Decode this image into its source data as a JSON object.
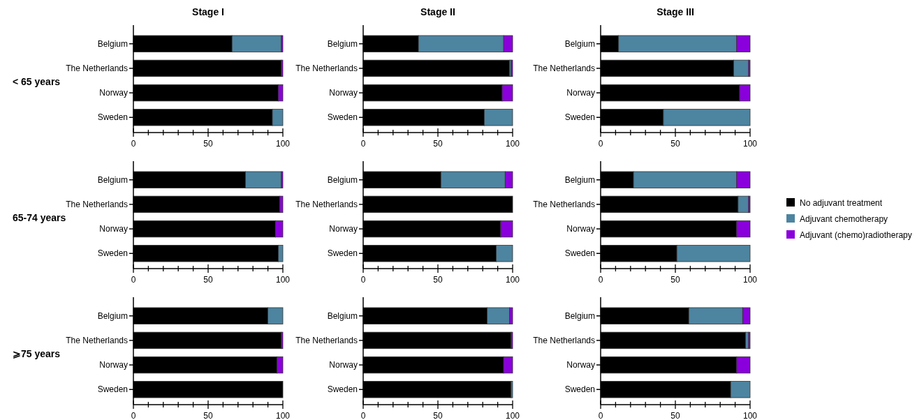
{
  "chart_data": [
    {
      "type": "bar",
      "orientation": "horizontal",
      "stacked": true,
      "title": "Stage I",
      "ylabel": "< 65 years",
      "categories": [
        "Belgium",
        "The Netherlands",
        "Norway",
        "Sweden"
      ],
      "xlim": [
        0,
        100
      ],
      "xticks": [
        0,
        {
          "value": 10,
          "label": null
        },
        {
          "value": 20,
          "label": null
        },
        {
          "value": 30,
          "label": null
        },
        {
          "value": 40,
          "label": null
        },
        50,
        {
          "value": 60,
          "label": null
        },
        {
          "value": 70,
          "label": null
        },
        {
          "value": 80,
          "label": null
        },
        {
          "value": 90,
          "label": null
        },
        100
      ],
      "series": [
        {
          "color": "#000000",
          "values": [
            66,
            99,
            97,
            93
          ]
        },
        {
          "color": "#4d84a0",
          "values": [
            33,
            0,
            0,
            7
          ]
        },
        {
          "color": "#8a00dc",
          "values": [
            1,
            1,
            3,
            0
          ]
        }
      ]
    },
    {
      "type": "bar",
      "orientation": "horizontal",
      "stacked": true,
      "title": "Stage II",
      "categories": [
        "Belgium",
        "The Netherlands",
        "Norway",
        "Sweden"
      ],
      "xlim": [
        0,
        100
      ],
      "xticks": [
        0,
        {
          "value": 10,
          "label": null
        },
        {
          "value": 20,
          "label": null
        },
        {
          "value": 30,
          "label": null
        },
        {
          "value": 40,
          "label": null
        },
        50,
        {
          "value": 60,
          "label": null
        },
        {
          "value": 70,
          "label": null
        },
        {
          "value": 80,
          "label": null
        },
        {
          "value": 90,
          "label": null
        },
        100
      ],
      "series": [
        {
          "color": "#000000",
          "values": [
            37,
            98,
            93,
            81
          ]
        },
        {
          "color": "#4d84a0",
          "values": [
            57,
            1,
            0,
            19
          ]
        },
        {
          "color": "#8a00dc",
          "values": [
            6,
            1,
            7,
            0
          ]
        }
      ]
    },
    {
      "type": "bar",
      "orientation": "horizontal",
      "stacked": true,
      "title": "Stage III",
      "categories": [
        "Belgium",
        "The Netherlands",
        "Norway",
        "Sweden"
      ],
      "xlim": [
        0,
        100
      ],
      "xticks": [
        0,
        {
          "value": 10,
          "label": null
        },
        {
          "value": 20,
          "label": null
        },
        {
          "value": 30,
          "label": null
        },
        {
          "value": 40,
          "label": null
        },
        50,
        {
          "value": 60,
          "label": null
        },
        {
          "value": 70,
          "label": null
        },
        {
          "value": 80,
          "label": null
        },
        {
          "value": 90,
          "label": null
        },
        100
      ],
      "series": [
        {
          "color": "#000000",
          "values": [
            12,
            89,
            93,
            42
          ]
        },
        {
          "color": "#4d84a0",
          "values": [
            79,
            10,
            0,
            58
          ]
        },
        {
          "color": "#8a00dc",
          "values": [
            9,
            1,
            7,
            0
          ]
        }
      ]
    },
    {
      "type": "bar",
      "orientation": "horizontal",
      "stacked": true,
      "ylabel": "65-74 years",
      "categories": [
        "Belgium",
        "The Netherlands",
        "Norway",
        "Sweden"
      ],
      "xlim": [
        0,
        100
      ],
      "xticks": [
        0,
        {
          "value": 10,
          "label": null
        },
        {
          "value": 20,
          "label": null
        },
        {
          "value": 30,
          "label": null
        },
        {
          "value": 40,
          "label": null
        },
        50,
        {
          "value": 60,
          "label": null
        },
        {
          "value": 70,
          "label": null
        },
        {
          "value": 80,
          "label": null
        },
        {
          "value": 90,
          "label": null
        },
        100
      ],
      "series": [
        {
          "color": "#000000",
          "values": [
            75,
            98,
            95,
            97
          ]
        },
        {
          "color": "#4d84a0",
          "values": [
            24,
            0,
            0,
            3
          ]
        },
        {
          "color": "#8a00dc",
          "values": [
            1,
            2,
            5,
            0
          ]
        }
      ]
    },
    {
      "type": "bar",
      "orientation": "horizontal",
      "stacked": true,
      "categories": [
        "Belgium",
        "The Netherlands",
        "Norway",
        "Sweden"
      ],
      "xlim": [
        0,
        100
      ],
      "xticks": [
        0,
        {
          "value": 10,
          "label": null
        },
        {
          "value": 20,
          "label": null
        },
        {
          "value": 30,
          "label": null
        },
        {
          "value": 40,
          "label": null
        },
        50,
        {
          "value": 60,
          "label": null
        },
        {
          "value": 70,
          "label": null
        },
        {
          "value": 80,
          "label": null
        },
        {
          "value": 90,
          "label": null
        },
        100
      ],
      "series": [
        {
          "color": "#000000",
          "values": [
            52,
            100,
            92,
            89
          ]
        },
        {
          "color": "#4d84a0",
          "values": [
            43,
            0,
            0,
            11
          ]
        },
        {
          "color": "#8a00dc",
          "values": [
            5,
            0,
            8,
            0
          ]
        }
      ]
    },
    {
      "type": "bar",
      "orientation": "horizontal",
      "stacked": true,
      "legend": "right",
      "categories": [
        "Belgium",
        "The Netherlands",
        "Norway",
        "Sweden"
      ],
      "xlim": [
        0,
        100
      ],
      "xticks": [
        0,
        {
          "value": 10,
          "label": null
        },
        {
          "value": 20,
          "label": null
        },
        {
          "value": 30,
          "label": null
        },
        {
          "value": 40,
          "label": null
        },
        50,
        {
          "value": 60,
          "label": null
        },
        {
          "value": 70,
          "label": null
        },
        {
          "value": 80,
          "label": null
        },
        {
          "value": 90,
          "label": null
        },
        100
      ],
      "series": [
        {
          "name": "No adjuvant treatment",
          "color": "#000000",
          "values": [
            22,
            92,
            91,
            51
          ]
        },
        {
          "name": "Adjuvant chemotherapy",
          "color": "#4d84a0",
          "values": [
            69,
            7,
            0,
            49
          ]
        },
        {
          "name": "Adjuvant (chemo)radiotherapy",
          "color": "#8a00dc",
          "values": [
            9,
            1,
            9,
            0
          ]
        }
      ]
    },
    {
      "type": "bar",
      "orientation": "horizontal",
      "stacked": true,
      "ylabel": "⩾75 years",
      "categories": [
        "Belgium",
        "The Netherlands",
        "Norway",
        "Sweden"
      ],
      "xlim": [
        0,
        100
      ],
      "xticks": [
        0,
        {
          "value": 10,
          "label": null
        },
        {
          "value": 20,
          "label": null
        },
        {
          "value": 30,
          "label": null
        },
        {
          "value": 40,
          "label": null
        },
        50,
        {
          "value": 60,
          "label": null
        },
        {
          "value": 70,
          "label": null
        },
        {
          "value": 80,
          "label": null
        },
        {
          "value": 90,
          "label": null
        },
        100
      ],
      "series": [
        {
          "color": "#000000",
          "values": [
            90,
            99,
            96,
            100
          ]
        },
        {
          "color": "#4d84a0",
          "values": [
            10,
            0,
            0,
            0
          ]
        },
        {
          "color": "#8a00dc",
          "values": [
            0,
            1,
            4,
            0
          ]
        }
      ]
    },
    {
      "type": "bar",
      "orientation": "horizontal",
      "stacked": true,
      "categories": [
        "Belgium",
        "The Netherlands",
        "Norway",
        "Sweden"
      ],
      "xlim": [
        0,
        100
      ],
      "xticks": [
        0,
        {
          "value": 10,
          "label": null
        },
        {
          "value": 20,
          "label": null
        },
        {
          "value": 30,
          "label": null
        },
        {
          "value": 40,
          "label": null
        },
        50,
        {
          "value": 60,
          "label": null
        },
        {
          "value": 70,
          "label": null
        },
        {
          "value": 80,
          "label": null
        },
        {
          "value": 90,
          "label": null
        },
        100
      ],
      "series": [
        {
          "color": "#000000",
          "values": [
            83,
            99,
            94,
            99
          ]
        },
        {
          "color": "#4d84a0",
          "values": [
            15,
            0,
            0,
            1
          ]
        },
        {
          "color": "#8a00dc",
          "values": [
            2,
            1,
            6,
            0
          ]
        }
      ]
    },
    {
      "type": "bar",
      "orientation": "horizontal",
      "stacked": true,
      "categories": [
        "Belgium",
        "The Netherlands",
        "Norway",
        "Sweden"
      ],
      "xlim": [
        0,
        100
      ],
      "xticks": [
        0,
        {
          "value": 10,
          "label": null
        },
        {
          "value": 20,
          "label": null
        },
        {
          "value": 30,
          "label": null
        },
        {
          "value": 40,
          "label": null
        },
        50,
        {
          "value": 60,
          "label": null
        },
        {
          "value": 70,
          "label": null
        },
        {
          "value": 80,
          "label": null
        },
        {
          "value": 90,
          "label": null
        },
        100
      ],
      "series": [
        {
          "color": "#000000",
          "values": [
            59,
            97,
            91,
            87
          ]
        },
        {
          "color": "#4d84a0",
          "values": [
            36,
            2,
            0,
            13
          ]
        },
        {
          "color": "#8a00dc",
          "values": [
            5,
            1,
            9,
            0
          ]
        }
      ]
    }
  ]
}
